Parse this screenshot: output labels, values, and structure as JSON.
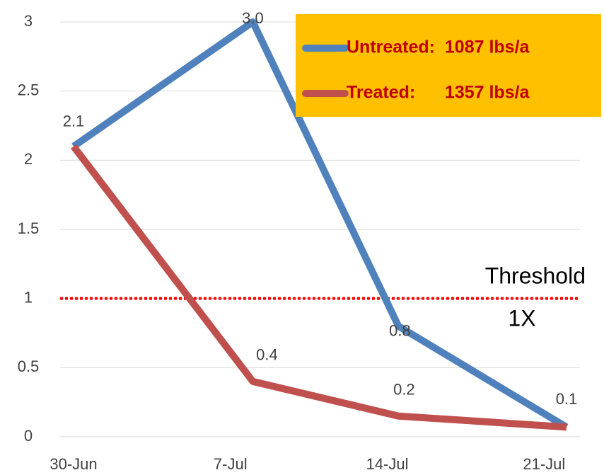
{
  "chart_data": {
    "type": "line",
    "series": [
      {
        "name": "Untreated:  1087 lbs/a",
        "color": "#4f81bd",
        "x": [
          0,
          8,
          14.5,
          22
        ],
        "values": [
          2.1,
          3.0,
          0.8,
          0.07
        ],
        "value_labels": [
          "2.1",
          "3.0",
          "0.8",
          "0.1"
        ]
      },
      {
        "name": "Treated:      1357 lbs/a",
        "color": "#c0504d",
        "x": [
          0,
          8,
          14.5,
          22
        ],
        "values": [
          2.1,
          0.4,
          0.15,
          0.07
        ],
        "value_labels": [
          null,
          "0.4",
          "0.2",
          null
        ]
      }
    ],
    "xlim": [
      -0.6,
      22.6
    ],
    "xticks": [
      {
        "value": 0,
        "label": "30-Jun"
      },
      {
        "value": 7,
        "label": "7-Jul"
      },
      {
        "value": 14,
        "label": "14-Jul"
      },
      {
        "value": 21,
        "label": "21-Jul"
      }
    ],
    "ylim": [
      0,
      3
    ],
    "yticks": [
      0,
      0.5,
      1,
      1.5,
      2,
      2.5,
      3
    ],
    "grid": true,
    "threshold": {
      "value": 1,
      "label": [
        "Threshold",
        "1X"
      ],
      "color": "#ff0000"
    },
    "legend": {
      "position": "top-right",
      "background": "#ffc000",
      "text_color": "#c00000"
    }
  }
}
